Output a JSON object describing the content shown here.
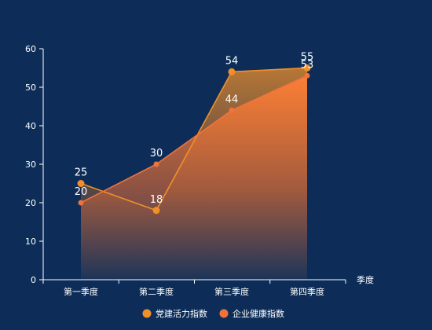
{
  "chart_data": {
    "type": "area",
    "categories": [
      "第一季度",
      "第二季度",
      "第三季度",
      "第四季度"
    ],
    "xlabel": "季度",
    "ylabel": "",
    "ylim": [
      0,
      60
    ],
    "yticks": [
      0,
      10,
      20,
      30,
      40,
      50,
      60
    ],
    "grid": false,
    "legend_position": "bottom-center",
    "series": [
      {
        "name": "党建活力指数",
        "values": [
          25,
          18,
          54,
          55
        ],
        "color": "#f0902a",
        "label_position": "above"
      },
      {
        "name": "企业健康指数",
        "values": [
          20,
          30,
          44,
          53
        ],
        "color": "#f0733c",
        "label_position": "above"
      }
    ]
  }
}
